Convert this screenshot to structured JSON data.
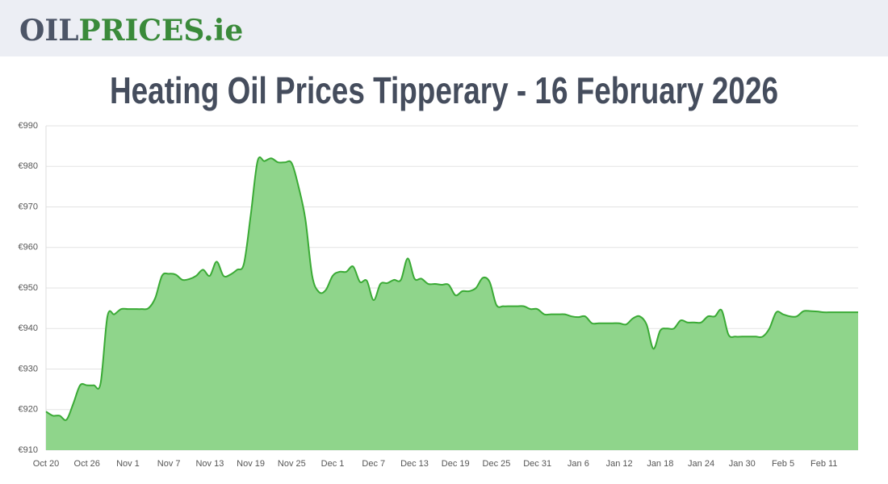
{
  "header": {
    "logo_left": "OIL",
    "logo_right": "PRICES.ie"
  },
  "chart_data": {
    "type": "area",
    "title": "Heating Oil Prices Tipperary - 16 February 2026",
    "categories": [
      "Oct 20",
      null,
      null,
      null,
      null,
      null,
      "Oct 26",
      null,
      null,
      null,
      null,
      null,
      "Nov 1",
      null,
      null,
      null,
      null,
      null,
      "Nov 7",
      null,
      null,
      null,
      null,
      null,
      "Nov 13",
      null,
      null,
      null,
      null,
      null,
      "Nov 19",
      null,
      null,
      null,
      null,
      null,
      "Nov 25",
      null,
      null,
      null,
      null,
      null,
      "Dec 1",
      null,
      null,
      null,
      null,
      null,
      "Dec 7",
      null,
      null,
      null,
      null,
      null,
      "Dec 13",
      null,
      null,
      null,
      null,
      null,
      "Dec 19",
      null,
      null,
      null,
      null,
      null,
      "Dec 25",
      null,
      null,
      null,
      null,
      null,
      "Dec 31",
      null,
      null,
      null,
      null,
      null,
      "Jan 6",
      null,
      null,
      null,
      null,
      null,
      "Jan 12",
      null,
      null,
      null,
      null,
      null,
      "Jan 18",
      null,
      null,
      null,
      null,
      null,
      "Jan 24",
      null,
      null,
      null,
      null,
      null,
      "Jan 30",
      null,
      null,
      null,
      null,
      null,
      "Feb 5",
      null,
      null,
      null,
      null,
      null,
      "Feb 11",
      null,
      null,
      null,
      null,
      null
    ],
    "values": [
      919.5,
      918.5,
      918.5,
      917.5,
      921.5,
      926,
      926,
      926,
      926.5,
      943,
      943.5,
      944.8,
      944.8,
      944.8,
      944.8,
      945,
      947.5,
      953,
      953.5,
      953.3,
      952,
      952.2,
      953,
      954.5,
      953,
      956.5,
      953,
      953.3,
      954.5,
      956,
      968,
      981.3,
      981.3,
      982,
      981,
      981,
      980.8,
      975,
      967,
      953,
      949,
      949.5,
      953,
      954,
      954,
      955.3,
      951.5,
      951.8,
      947,
      951,
      951.2,
      952,
      952,
      957.3,
      952.3,
      952.3,
      951,
      951,
      950.8,
      950.8,
      948.2,
      949.2,
      949.2,
      950,
      952.5,
      951.5,
      945.8,
      945.5,
      945.5,
      945.5,
      945.5,
      944.8,
      944.8,
      943.5,
      943.5,
      943.5,
      943.5,
      943,
      942.8,
      943,
      941.3,
      941.3,
      941.3,
      941.3,
      941.3,
      941,
      942.5,
      943,
      941,
      935,
      939.5,
      940,
      940,
      942,
      941.5,
      941.5,
      941.5,
      943,
      943,
      944.5,
      938.5,
      938,
      938,
      938,
      938,
      938,
      940,
      944,
      943.5,
      943,
      943,
      944.3,
      944.3,
      944.2,
      944,
      944,
      944,
      944,
      944,
      944
    ],
    "color": "#3aaa35",
    "fill_color": "#8fd58b",
    "ylim": [
      910,
      990
    ],
    "yticks": [
      {
        "value": 910,
        "label": "€910"
      },
      {
        "value": 920,
        "label": "€920"
      },
      {
        "value": 930,
        "label": "€930"
      },
      {
        "value": 940,
        "label": "€940"
      },
      {
        "value": 950,
        "label": "€950"
      },
      {
        "value": 960,
        "label": "€960"
      },
      {
        "value": 970,
        "label": "€970"
      },
      {
        "value": 980,
        "label": "€980"
      },
      {
        "value": 990,
        "label": "€990"
      }
    ],
    "grid": true
  }
}
